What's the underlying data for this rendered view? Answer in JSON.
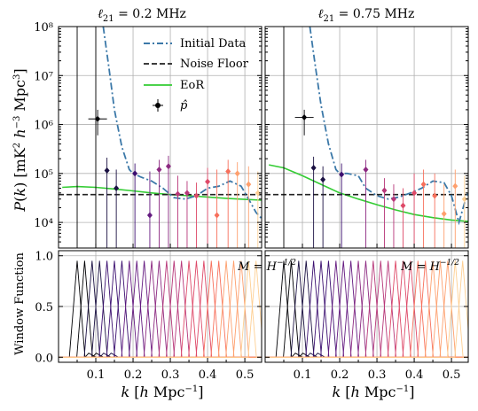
{
  "chart_data": {
    "type": "line",
    "panels": [
      {
        "title": "ℓ₂₁ = 0.2 MHz",
        "curves": {
          "initial_data": {
            "k": [
              0.12,
              0.135,
              0.15,
              0.17,
              0.19,
              0.2,
              0.22,
              0.25,
              0.28,
              0.31,
              0.34,
              0.37,
              0.4,
              0.43,
              0.46,
              0.49,
              0.51,
              0.53,
              0.545
            ],
            "P": [
              100000000.0,
              15000000.0,
              2000000.0,
              350000.0,
              120000.0,
              100000.0,
              85000.0,
              70000.0,
              50000.0,
              32000.0,
              30000.0,
              35000.0,
              50000.0,
              55000.0,
              70000.0,
              55000.0,
              30000.0,
              16000.0,
              12000.0
            ]
          },
          "eor": {
            "k": [
              0.01,
              0.05,
              0.1,
              0.15,
              0.2,
              0.25,
              0.3,
              0.35,
              0.4,
              0.45,
              0.5,
              0.545
            ],
            "P": [
              52000.0,
              54000.0,
              52000.0,
              48000.0,
              44000.0,
              40000.0,
              37000.0,
              35000.0,
              33000.0,
              31000.0,
              29500.0,
              28500.0
            ]
          },
          "noise_floor": 37000.0
        },
        "points": [
          {
            "k": 0.105,
            "P": 1300000.0,
            "up": 2000000.0,
            "dn": 600000.0,
            "xerr": 0.04
          },
          {
            "k": 0.13,
            "P": 115000.0,
            "up": 210000.0,
            "dn": 0
          },
          {
            "k": 0.155,
            "P": 50000.0,
            "up": 120000.0,
            "dn": 0
          },
          {
            "k": 0.205,
            "P": 100000.0,
            "up": 160000.0,
            "dn": 0
          },
          {
            "k": 0.245,
            "P": 14000.0,
            "up": 110000.0,
            "dn": 0
          },
          {
            "k": 0.27,
            "P": 120000.0,
            "up": 190000.0,
            "dn": 0
          },
          {
            "k": 0.295,
            "P": 140000.0,
            "up": 230000.0,
            "dn": 0
          },
          {
            "k": 0.32,
            "P": 38000.0,
            "up": 90000.0,
            "dn": 0
          },
          {
            "k": 0.345,
            "P": 40000.0,
            "up": 70000.0,
            "dn": 0
          },
          {
            "k": 0.37,
            "P": 35000.0,
            "up": 65000.0,
            "dn": 0
          },
          {
            "k": 0.4,
            "P": 68000.0,
            "up": 130000.0,
            "dn": 0
          },
          {
            "k": 0.425,
            "P": 14000.0,
            "up": 120000.0,
            "dn": 0
          },
          {
            "k": 0.455,
            "P": 110000.0,
            "up": 190000.0,
            "dn": 0
          },
          {
            "k": 0.48,
            "P": 100000.0,
            "up": 170000.0,
            "dn": 0
          },
          {
            "k": 0.51,
            "P": 60000.0,
            "up": 140000.0,
            "dn": 0
          },
          {
            "k": 0.535,
            "P": 40000.0,
            "up": 110000.0,
            "dn": 0
          }
        ],
        "annotation": "M = H^{-1/2}"
      },
      {
        "title": "ℓ₂₁ = 0.75 MHz",
        "curves": {
          "initial_data": {
            "k": [
              0.12,
              0.135,
              0.15,
              0.17,
              0.19,
              0.2,
              0.22,
              0.25,
              0.27,
              0.3,
              0.33,
              0.36,
              0.39,
              0.42,
              0.45,
              0.48,
              0.5,
              0.52,
              0.535,
              0.545
            ],
            "P": [
              100000000.0,
              15000000.0,
              2500000.0,
              400000.0,
              120000.0,
              100000.0,
              100000.0,
              90000.0,
              50000.0,
              35000.0,
              30000.0,
              33000.0,
              40000.0,
              50000.0,
              70000.0,
              65000.0,
              35000.0,
              10000.0,
              25000.0,
              40000.0
            ]
          },
          "eor": {
            "k": [
              0.01,
              0.05,
              0.1,
              0.15,
              0.2,
              0.25,
              0.3,
              0.35,
              0.4,
              0.45,
              0.5,
              0.545
            ],
            "P": [
              150000.0,
              130000.0,
              90000.0,
              60000.0,
              40000.0,
              30000.0,
              23000.0,
              18000.0,
              14500.0,
              12500.0,
              11200.0,
              10500.0
            ]
          },
          "noise_floor": 37000.0
        },
        "points": [
          {
            "k": 0.105,
            "P": 1400000.0,
            "up": 2000000.0,
            "dn": 600000.0,
            "xerr": 0.04
          },
          {
            "k": 0.13,
            "P": 130000.0,
            "up": 220000.0,
            "dn": 0
          },
          {
            "k": 0.155,
            "P": 75000.0,
            "up": 140000.0,
            "dn": 0
          },
          {
            "k": 0.205,
            "P": 95000.0,
            "up": 160000.0,
            "dn": 0
          },
          {
            "k": 0.27,
            "P": 120000.0,
            "up": 190000.0,
            "dn": 0
          },
          {
            "k": 0.32,
            "P": 45000.0,
            "up": 80000.0,
            "dn": 0
          },
          {
            "k": 0.345,
            "P": 30000.0,
            "up": 60000.0,
            "dn": 0
          },
          {
            "k": 0.37,
            "P": 22000.0,
            "up": 50000.0,
            "dn": 0
          },
          {
            "k": 0.4,
            "P": 40000.0,
            "up": 100000.0,
            "dn": 0
          },
          {
            "k": 0.425,
            "P": 60000.0,
            "up": 120000.0,
            "dn": 0
          },
          {
            "k": 0.455,
            "P": 35000.0,
            "up": 100000.0,
            "dn": 0
          },
          {
            "k": 0.48,
            "P": 15000.0,
            "up": 60000.0,
            "dn": 0
          },
          {
            "k": 0.51,
            "P": 55000.0,
            "up": 120000.0,
            "dn": 0
          },
          {
            "k": 0.535,
            "P": 30000.0,
            "up": 90000.0,
            "dn": 0
          }
        ],
        "annotation": "M = H^{-1/2}"
      }
    ],
    "legend": {
      "initial_data": "Initial Data",
      "noise_floor": "Noise Floor",
      "eor": "EoR",
      "estimate": "p̂",
      "placement": "top-right (left panel)"
    },
    "xlabel": "k [h Mpc⁻¹]",
    "ylabel_top": "P(k) [mK² h⁻³ Mpc³]",
    "ylabel_bottom": "Window Function",
    "xlim": [
      0.0,
      0.545
    ],
    "ylim_top": [
      3000,
      100000000
    ],
    "ylim_bottom": [
      -0.05,
      1.05
    ],
    "log_y_top": true,
    "x_ticks": [
      "0.1",
      "0.2",
      "0.3",
      "0.4",
      "0.5"
    ],
    "y_ticks_top": [
      "10⁴",
      "10⁵",
      "10⁶",
      "10⁷",
      "10⁸"
    ],
    "y_ticks_bottom": [
      "0.0",
      "0.5",
      "1.0"
    ],
    "window_centers": [
      0.05,
      0.07,
      0.09,
      0.11,
      0.13,
      0.15,
      0.17,
      0.19,
      0.21,
      0.23,
      0.25,
      0.27,
      0.29,
      0.31,
      0.33,
      0.35,
      0.37,
      0.39,
      0.41,
      0.43,
      0.45,
      0.47,
      0.49,
      0.51,
      0.53
    ],
    "window_halfwidth": 0.021,
    "grid": true,
    "colors": {
      "initial_data": "#3b78a8",
      "noise_floor": "#222222",
      "eor": "#33cc33",
      "palette": [
        "#000004",
        "#1a1042",
        "#3b0f70",
        "#641a80",
        "#8c2981",
        "#b73779",
        "#de4968",
        "#f7705c",
        "#fe9f6d",
        "#fecf92"
      ]
    }
  }
}
